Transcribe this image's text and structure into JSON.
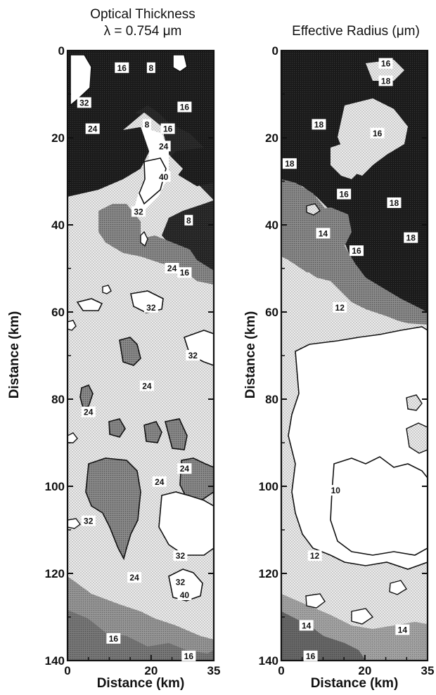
{
  "chart_data": [
    {
      "type": "heatmap",
      "title_line1": "Optical Thickness",
      "title_line2": "λ = 0.754 μm",
      "xlabel": "Distance (km)",
      "ylabel": "Distance (km)",
      "xlim": [
        0,
        35
      ],
      "ylim": [
        140,
        0
      ],
      "x_ticks": [
        0,
        20,
        35
      ],
      "y_ticks": [
        0,
        20,
        40,
        60,
        80,
        100,
        120,
        140
      ],
      "levels": [
        8,
        16,
        24,
        32,
        40
      ],
      "contour_labels": [
        {
          "text": "16",
          "x": 13,
          "y": 4
        },
        {
          "text": "8",
          "x": 20,
          "y": 4
        },
        {
          "text": "32",
          "x": 4,
          "y": 12
        },
        {
          "text": "24",
          "x": 6,
          "y": 18
        },
        {
          "text": "8",
          "x": 19,
          "y": 17
        },
        {
          "text": "16",
          "x": 24,
          "y": 18
        },
        {
          "text": "16",
          "x": 28,
          "y": 13
        },
        {
          "text": "24",
          "x": 23,
          "y": 22
        },
        {
          "text": "40",
          "x": 23,
          "y": 29
        },
        {
          "text": "32",
          "x": 17,
          "y": 37
        },
        {
          "text": "8",
          "x": 29,
          "y": 39
        },
        {
          "text": "24",
          "x": 25,
          "y": 50
        },
        {
          "text": "16",
          "x": 28,
          "y": 51
        },
        {
          "text": "32",
          "x": 20,
          "y": 59
        },
        {
          "text": "32",
          "x": 30,
          "y": 70
        },
        {
          "text": "24",
          "x": 19,
          "y": 77
        },
        {
          "text": "24",
          "x": 5,
          "y": 83
        },
        {
          "text": "24",
          "x": 28,
          "y": 96
        },
        {
          "text": "24",
          "x": 22,
          "y": 99
        },
        {
          "text": "32",
          "x": 5,
          "y": 108
        },
        {
          "text": "32",
          "x": 27,
          "y": 116
        },
        {
          "text": "24",
          "x": 16,
          "y": 121
        },
        {
          "text": "32",
          "x": 27,
          "y": 122
        },
        {
          "text": "40",
          "x": 28,
          "y": 125
        },
        {
          "text": "16",
          "x": 11,
          "y": 135
        },
        {
          "text": "16",
          "x": 29,
          "y": 139
        }
      ]
    },
    {
      "type": "heatmap",
      "title_line1": "Effective Radius (μm)",
      "xlabel": "Distance (km)",
      "ylabel": "Distance (km)",
      "xlim": [
        0,
        35
      ],
      "ylim": [
        140,
        0
      ],
      "x_ticks": [
        0,
        20,
        35
      ],
      "y_ticks": [
        0,
        20,
        40,
        60,
        80,
        100,
        120,
        140
      ],
      "levels": [
        10,
        12,
        14,
        16,
        18
      ],
      "contour_labels": [
        {
          "text": "16",
          "x": 25,
          "y": 3
        },
        {
          "text": "18",
          "x": 25,
          "y": 7
        },
        {
          "text": "18",
          "x": 9,
          "y": 17
        },
        {
          "text": "16",
          "x": 23,
          "y": 19
        },
        {
          "text": "18",
          "x": 2,
          "y": 26
        },
        {
          "text": "16",
          "x": 15,
          "y": 33
        },
        {
          "text": "18",
          "x": 27,
          "y": 35
        },
        {
          "text": "14",
          "x": 10,
          "y": 42
        },
        {
          "text": "18",
          "x": 31,
          "y": 43
        },
        {
          "text": "16",
          "x": 18,
          "y": 46
        },
        {
          "text": "12",
          "x": 14,
          "y": 59
        },
        {
          "text": "10",
          "x": 13,
          "y": 101
        },
        {
          "text": "12",
          "x": 8,
          "y": 116
        },
        {
          "text": "14",
          "x": 6,
          "y": 132
        },
        {
          "text": "16",
          "x": 7,
          "y": 139
        },
        {
          "text": "14",
          "x": 29,
          "y": 133
        }
      ]
    }
  ]
}
